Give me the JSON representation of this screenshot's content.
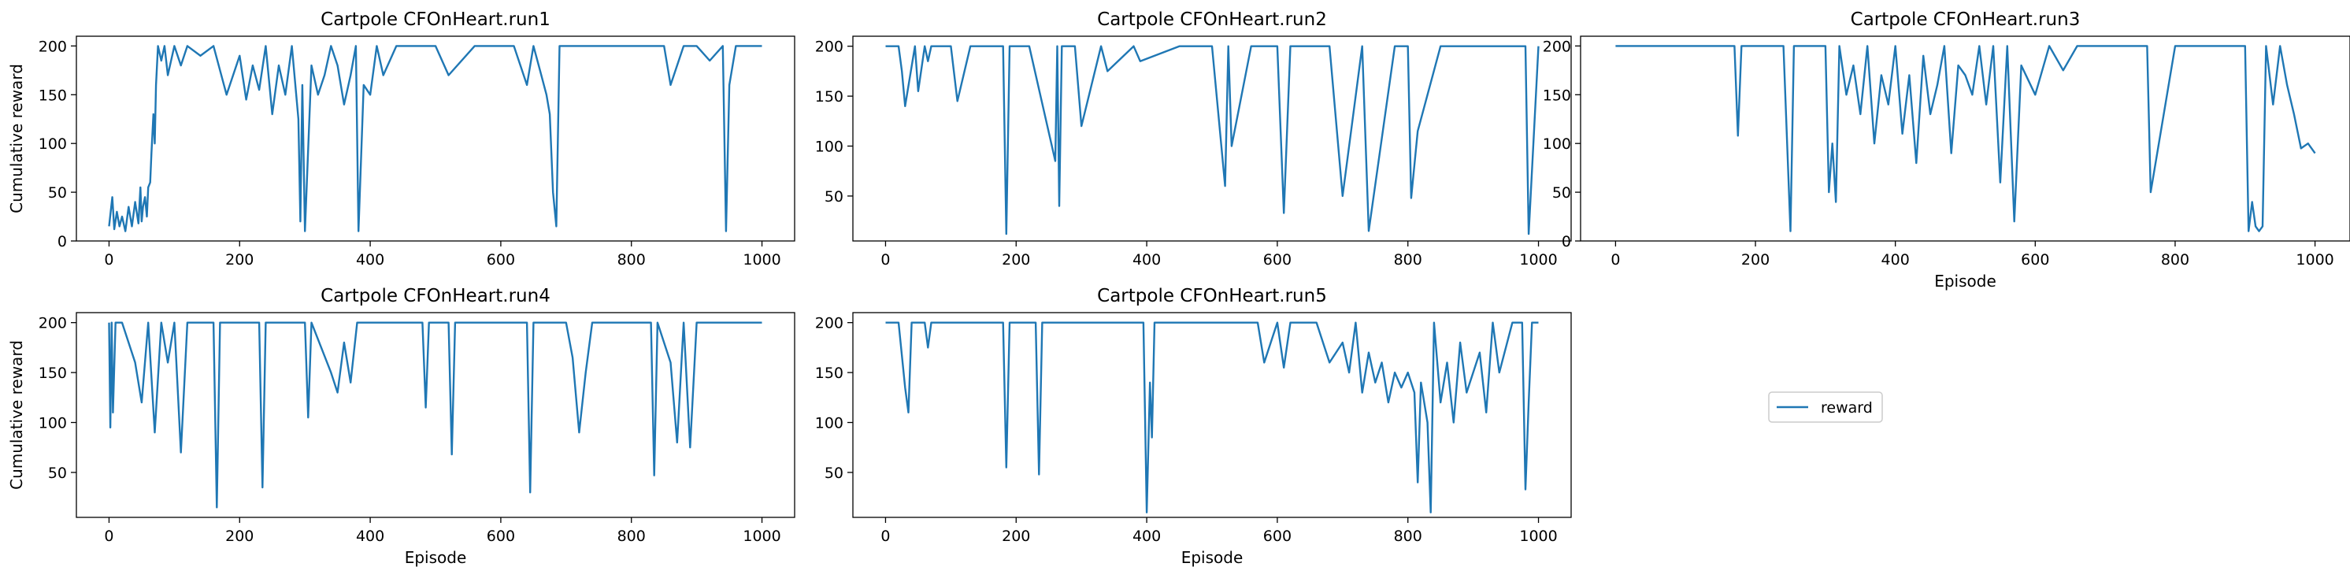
{
  "figure": {
    "legend": {
      "label": "reward",
      "color": "#1f77b4"
    }
  },
  "chart_data": [
    {
      "type": "line",
      "title": "Cartpole CFOnHeart.run1",
      "xlabel": "",
      "ylabel": "Cumulative reward",
      "xlim": [
        -50,
        1050
      ],
      "ylim": [
        0,
        210
      ],
      "xticks": [
        0,
        200,
        400,
        600,
        800,
        1000
      ],
      "yticks": [
        0,
        50,
        100,
        150,
        200
      ],
      "series": [
        {
          "name": "reward",
          "color": "#1f77b4",
          "x": [
            0,
            5,
            8,
            12,
            16,
            20,
            25,
            30,
            35,
            40,
            45,
            48,
            50,
            52,
            55,
            58,
            60,
            63,
            65,
            68,
            70,
            72,
            75,
            80,
            85,
            90,
            100,
            110,
            120,
            140,
            160,
            180,
            200,
            210,
            220,
            230,
            240,
            250,
            260,
            270,
            280,
            290,
            293,
            296,
            300,
            310,
            320,
            330,
            340,
            350,
            360,
            370,
            378,
            382,
            390,
            400,
            410,
            420,
            430,
            440,
            450,
            470,
            500,
            520,
            560,
            600,
            620,
            640,
            650,
            660,
            670,
            675,
            680,
            685,
            690,
            700,
            750,
            800,
            850,
            860,
            880,
            900,
            920,
            940,
            945,
            950,
            960,
            1000
          ],
          "y": [
            15,
            45,
            12,
            30,
            15,
            25,
            10,
            35,
            15,
            40,
            18,
            55,
            20,
            35,
            45,
            25,
            55,
            60,
            90,
            130,
            100,
            160,
            200,
            185,
            200,
            170,
            200,
            180,
            200,
            190,
            200,
            150,
            190,
            145,
            180,
            155,
            200,
            130,
            180,
            150,
            200,
            125,
            20,
            160,
            10,
            180,
            150,
            170,
            200,
            180,
            140,
            170,
            200,
            10,
            160,
            150,
            200,
            170,
            185,
            200,
            200,
            200,
            200,
            170,
            200,
            200,
            200,
            160,
            200,
            175,
            150,
            130,
            50,
            15,
            200,
            200,
            200,
            200,
            200,
            160,
            200,
            200,
            185,
            200,
            10,
            160,
            200,
            200
          ]
        }
      ]
    },
    {
      "type": "line",
      "title": "Cartpole CFOnHeart.run2",
      "xlabel": "",
      "ylabel": "",
      "xlim": [
        -50,
        1050
      ],
      "ylim": [
        5,
        210
      ],
      "xticks": [
        0,
        200,
        400,
        600,
        800,
        1000
      ],
      "yticks": [
        50,
        100,
        150,
        200
      ],
      "series": [
        {
          "name": "reward",
          "color": "#1f77b4",
          "x": [
            0,
            20,
            25,
            30,
            45,
            50,
            60,
            65,
            70,
            100,
            110,
            130,
            150,
            180,
            185,
            190,
            220,
            260,
            263,
            266,
            270,
            290,
            300,
            330,
            340,
            380,
            390,
            450,
            500,
            520,
            525,
            530,
            560,
            600,
            610,
            620,
            680,
            700,
            730,
            740,
            780,
            800,
            805,
            815,
            850,
            900,
            980,
            985,
            1000
          ],
          "y": [
            200,
            200,
            175,
            140,
            200,
            155,
            200,
            185,
            200,
            200,
            145,
            200,
            200,
            200,
            12,
            200,
            200,
            85,
            200,
            40,
            200,
            200,
            120,
            200,
            175,
            200,
            185,
            200,
            200,
            60,
            200,
            100,
            200,
            200,
            33,
            200,
            200,
            50,
            200,
            15,
            200,
            200,
            48,
            115,
            200,
            200,
            200,
            12,
            200
          ]
        }
      ]
    },
    {
      "type": "line",
      "title": "Cartpole CFOnHeart.run3",
      "xlabel": "Episode",
      "ylabel": "",
      "xlim": [
        -50,
        1050
      ],
      "ylim": [
        0,
        210
      ],
      "xticks": [
        0,
        200,
        400,
        600,
        800,
        1000
      ],
      "yticks": [
        0,
        50,
        100,
        150,
        200
      ],
      "series": [
        {
          "name": "reward",
          "color": "#1f77b4",
          "x": [
            0,
            100,
            170,
            175,
            180,
            240,
            250,
            255,
            300,
            305,
            310,
            315,
            320,
            330,
            340,
            350,
            360,
            370,
            380,
            390,
            400,
            410,
            420,
            430,
            440,
            450,
            460,
            470,
            480,
            490,
            500,
            510,
            520,
            530,
            540,
            550,
            560,
            570,
            580,
            600,
            620,
            640,
            660,
            700,
            760,
            765,
            800,
            880,
            900,
            905,
            910,
            915,
            920,
            925,
            930,
            940,
            950,
            960,
            970,
            980,
            990,
            1000
          ],
          "y": [
            200,
            200,
            200,
            108,
            200,
            200,
            10,
            200,
            200,
            50,
            100,
            40,
            200,
            150,
            180,
            130,
            200,
            100,
            170,
            140,
            200,
            110,
            170,
            80,
            190,
            130,
            160,
            200,
            90,
            180,
            170,
            150,
            200,
            140,
            200,
            60,
            200,
            20,
            180,
            150,
            200,
            175,
            200,
            200,
            200,
            50,
            200,
            200,
            200,
            10,
            40,
            15,
            10,
            15,
            200,
            140,
            200,
            160,
            130,
            95,
            100,
            90
          ]
        }
      ]
    },
    {
      "type": "line",
      "title": "Cartpole CFOnHeart.run4",
      "xlabel": "Episode",
      "ylabel": "Cumulative reward",
      "xlim": [
        -50,
        1050
      ],
      "ylim": [
        5,
        210
      ],
      "xticks": [
        0,
        200,
        400,
        600,
        800,
        1000
      ],
      "yticks": [
        50,
        100,
        150,
        200
      ],
      "series": [
        {
          "name": "reward",
          "color": "#1f77b4",
          "x": [
            0,
            2,
            4,
            6,
            10,
            20,
            40,
            50,
            60,
            70,
            80,
            90,
            100,
            110,
            120,
            140,
            160,
            165,
            170,
            200,
            230,
            235,
            240,
            300,
            305,
            310,
            340,
            350,
            360,
            370,
            380,
            400,
            480,
            485,
            490,
            520,
            525,
            530,
            600,
            640,
            645,
            650,
            700,
            710,
            720,
            730,
            740,
            800,
            830,
            835,
            840,
            860,
            870,
            880,
            890,
            900,
            1000
          ],
          "y": [
            200,
            95,
            200,
            110,
            200,
            200,
            160,
            120,
            200,
            90,
            200,
            160,
            200,
            70,
            200,
            200,
            200,
            15,
            200,
            200,
            200,
            35,
            200,
            200,
            105,
            200,
            150,
            130,
            180,
            140,
            200,
            200,
            200,
            115,
            200,
            200,
            68,
            200,
            200,
            200,
            30,
            200,
            200,
            165,
            90,
            150,
            200,
            200,
            200,
            47,
            200,
            160,
            80,
            200,
            75,
            200,
            200
          ]
        }
      ]
    },
    {
      "type": "line",
      "title": "Cartpole CFOnHeart.run5",
      "xlabel": "Episode",
      "ylabel": "",
      "xlim": [
        -50,
        1050
      ],
      "ylim": [
        5,
        210
      ],
      "xticks": [
        0,
        200,
        400,
        600,
        800,
        1000
      ],
      "yticks": [
        50,
        100,
        150,
        200
      ],
      "series": [
        {
          "name": "reward",
          "color": "#1f77b4",
          "x": [
            0,
            20,
            30,
            35,
            40,
            60,
            65,
            70,
            180,
            185,
            190,
            230,
            235,
            240,
            395,
            400,
            405,
            408,
            412,
            570,
            580,
            590,
            600,
            610,
            620,
            640,
            660,
            680,
            700,
            710,
            720,
            730,
            740,
            750,
            760,
            770,
            780,
            790,
            800,
            810,
            815,
            820,
            830,
            835,
            840,
            850,
            860,
            870,
            880,
            890,
            900,
            910,
            920,
            930,
            940,
            960,
            975,
            980,
            985,
            990,
            1000
          ],
          "y": [
            200,
            200,
            135,
            110,
            200,
            200,
            175,
            200,
            200,
            55,
            200,
            200,
            48,
            200,
            200,
            10,
            140,
            85,
            200,
            200,
            160,
            180,
            200,
            155,
            200,
            200,
            200,
            160,
            180,
            150,
            200,
            130,
            170,
            140,
            160,
            120,
            150,
            135,
            150,
            130,
            40,
            140,
            100,
            10,
            200,
            120,
            160,
            100,
            180,
            130,
            150,
            170,
            110,
            200,
            150,
            200,
            200,
            33,
            120,
            200,
            200
          ]
        }
      ]
    }
  ]
}
